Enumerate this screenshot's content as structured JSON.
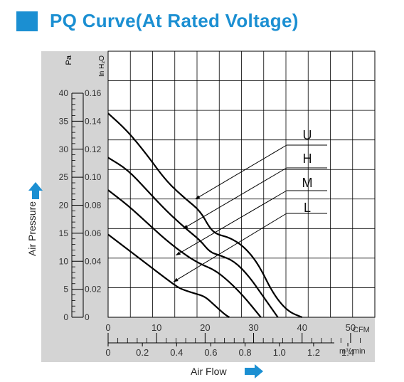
{
  "header": {
    "title": "PQ Curve(At Rated Voltage)"
  },
  "chart_data": {
    "type": "line",
    "title": "PQ Curve(At Rated Voltage)",
    "xlabel": "Air Flow",
    "ylabel": "Air Pressure",
    "x_unit_primary": "CFM",
    "x_unit_secondary": "m³/ min",
    "y_unit_primary": "Pa",
    "y_unit_secondary": "In H₂O",
    "xlim": [
      0,
      55
    ],
    "ylim": [
      0,
      45
    ],
    "x_ticks": [
      "0",
      "10",
      "20",
      "30",
      "40",
      "50"
    ],
    "x2_ticks": [
      "0",
      "0.2",
      "0.4",
      "0.6",
      "0.8",
      "1.0",
      "1.2",
      "1.4"
    ],
    "y_ticks": [
      "0",
      "5",
      "10",
      "15",
      "20",
      "25",
      "30",
      "35",
      "40"
    ],
    "y2_ticks": [
      "0",
      "0.02",
      "0.04",
      "0.06",
      "0.08",
      "0.10",
      "0.12",
      "0.14",
      "0.16"
    ],
    "grid": true,
    "colors": {
      "accent": "#1b8fd2",
      "curve": "#000000",
      "axis_panel": "#d4d4d4"
    },
    "series": [
      {
        "name": "U",
        "points": [
          [
            0,
            34.5
          ],
          [
            4,
            31.5
          ],
          [
            8,
            27.5
          ],
          [
            12,
            23
          ],
          [
            16,
            20
          ],
          [
            19,
            18
          ],
          [
            21,
            15
          ],
          [
            22.5,
            14
          ],
          [
            25,
            13.5
          ],
          [
            28,
            12
          ],
          [
            31,
            9
          ],
          [
            34,
            4
          ],
          [
            37,
            1
          ],
          [
            40,
            0
          ]
        ]
      },
      {
        "name": "H",
        "points": [
          [
            0,
            27
          ],
          [
            4,
            25
          ],
          [
            8,
            21.5
          ],
          [
            12,
            18
          ],
          [
            16,
            15
          ],
          [
            19,
            13
          ],
          [
            21,
            11
          ],
          [
            23,
            10.5
          ],
          [
            26,
            9.5
          ],
          [
            29,
            7
          ],
          [
            32,
            3.5
          ],
          [
            35,
            0
          ]
        ]
      },
      {
        "name": "M",
        "points": [
          [
            0,
            21.5
          ],
          [
            4,
            19
          ],
          [
            8,
            16
          ],
          [
            12,
            13
          ],
          [
            16,
            10.5
          ],
          [
            19,
            9
          ],
          [
            22,
            8
          ],
          [
            25,
            6
          ],
          [
            28,
            3.5
          ],
          [
            31,
            0.5
          ],
          [
            31.5,
            0
          ]
        ]
      },
      {
        "name": "L",
        "points": [
          [
            0,
            14
          ],
          [
            4,
            11.5
          ],
          [
            8,
            9
          ],
          [
            12,
            6.5
          ],
          [
            14.5,
            5
          ],
          [
            16,
            4.5
          ],
          [
            18,
            4
          ],
          [
            20,
            3.5
          ],
          [
            22,
            2
          ],
          [
            24,
            0.5
          ],
          [
            25,
            0
          ]
        ]
      }
    ],
    "annotations": [
      {
        "text": "U",
        "points_to": [
          18,
          20
        ]
      },
      {
        "text": "H",
        "points_to": [
          15.5,
          15
        ]
      },
      {
        "text": "M",
        "points_to": [
          14,
          10.5
        ]
      },
      {
        "text": "L",
        "points_to": [
          13.5,
          6
        ]
      }
    ]
  }
}
